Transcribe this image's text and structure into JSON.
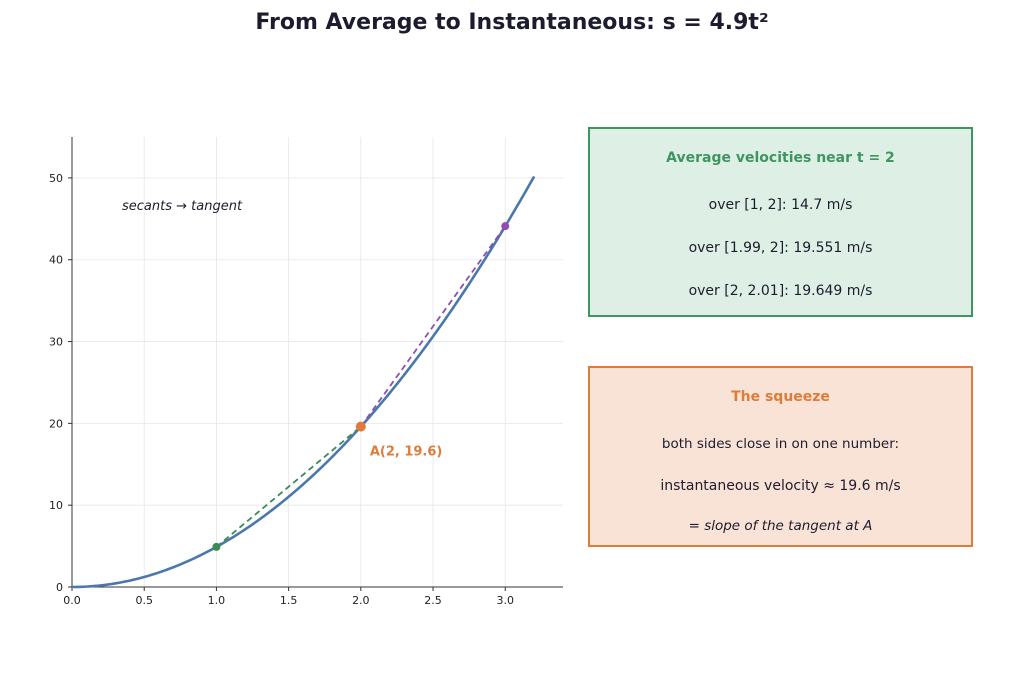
{
  "title": "From Average to Instantaneous:  s = 4.9t²",
  "colors": {
    "curve": "#4a78ad",
    "secant_left": "#3a8a55",
    "secant_right": "#8d4fb0",
    "point_a": "#e07b39",
    "green_box_fill": "#def0e5",
    "green_box_border": "#3f9560",
    "orange_box_fill": "#f9e3d6",
    "orange_box_border": "#e07b39"
  },
  "chart_data": {
    "type": "line",
    "title": "",
    "xlabel": "",
    "ylabel": "",
    "xlim": [
      0,
      3.4
    ],
    "ylim": [
      0,
      55
    ],
    "x_ticks": [
      "0.0",
      "0.5",
      "1.0",
      "1.5",
      "2.0",
      "2.5",
      "3.0"
    ],
    "y_ticks": [
      "0",
      "10",
      "20",
      "30",
      "40",
      "50"
    ],
    "grid": true,
    "curve": {
      "function": "4.9*t^2",
      "t_range": [
        0,
        3.2
      ]
    },
    "secants": [
      {
        "from": [
          1,
          4.9
        ],
        "to": [
          2,
          19.6
        ]
      },
      {
        "from": [
          2,
          19.6
        ],
        "to": [
          3,
          44.1
        ]
      }
    ],
    "points": [
      {
        "x": 1,
        "y": 4.9
      },
      {
        "x": 2,
        "y": 19.6
      },
      {
        "x": 3,
        "y": 44.1
      }
    ],
    "point_label": "A(2, 19.6)",
    "annotation": "secants → tangent"
  },
  "avg_box": {
    "heading": "Average velocities near t = 2",
    "lines": [
      "over [1, 2]: 14.7 m/s",
      "over [1.99, 2]: 19.551 m/s",
      "over [2, 2.01]: 19.649 m/s"
    ]
  },
  "squeeze_box": {
    "heading": "The squeeze",
    "line1": "both sides close in on one number:",
    "line2": "instantaneous velocity ≈ 19.6 m/s",
    "line3": "= slope of the tangent at A"
  }
}
